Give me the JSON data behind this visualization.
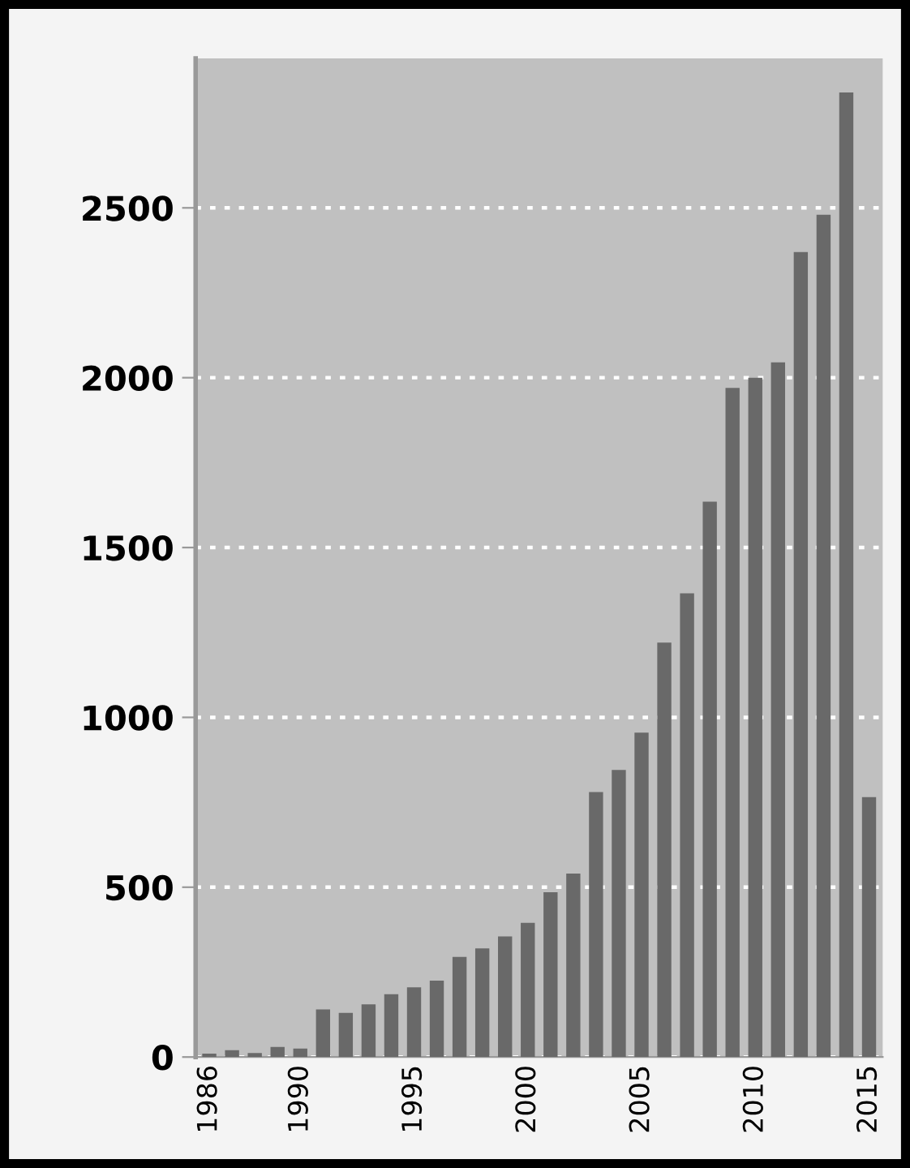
{
  "chart_data": {
    "type": "bar",
    "x": [
      1986,
      1987,
      1988,
      1989,
      1990,
      1991,
      1992,
      1993,
      1994,
      1995,
      1996,
      1997,
      1998,
      1999,
      2000,
      2001,
      2002,
      2003,
      2004,
      2005,
      2006,
      2007,
      2008,
      2009,
      2010,
      2011,
      2012,
      2013,
      2014,
      2015
    ],
    "values": [
      10,
      20,
      12,
      30,
      25,
      140,
      130,
      155,
      185,
      205,
      225,
      295,
      320,
      355,
      395,
      485,
      540,
      780,
      845,
      955,
      1220,
      1365,
      1635,
      1970,
      2000,
      2045,
      2370,
      2480,
      2840,
      765
    ],
    "color": "#696969",
    "xlim": [
      1985.4,
      2015.6
    ],
    "xticks": [
      1986,
      1990,
      1995,
      2000,
      2005,
      2010,
      2015
    ],
    "ylim": [
      0,
      2940
    ],
    "yticks": [
      0,
      500,
      1000,
      1500,
      2000,
      2500
    ],
    "grid": "y"
  }
}
